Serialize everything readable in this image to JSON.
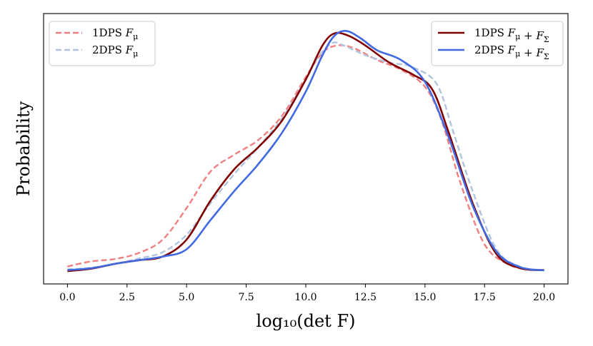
{
  "chart_data": {
    "type": "line",
    "title": "",
    "xlabel": "log₁₀(det F)",
    "ylabel": "Probability",
    "xlim": [
      -1.0,
      21.0
    ],
    "ylim": [
      0.0,
      1.0
    ],
    "x_ticks": [
      0.0,
      2.5,
      5.0,
      7.5,
      10.0,
      12.5,
      15.0,
      17.5,
      20.0
    ],
    "x_tick_labels": [
      "0.0",
      "2.5",
      "5.0",
      "7.5",
      "10.0",
      "12.5",
      "15.0",
      "17.5",
      "20.0"
    ],
    "y_ticks_visible": false,
    "grid": false,
    "legends": [
      {
        "placement": "top-left",
        "entries": [
          "1DPS F_μ",
          "2DPS F_μ"
        ]
      },
      {
        "placement": "top-right",
        "entries": [
          "1DPS F_μ + F_Σ",
          "2DPS F_μ + F_Σ"
        ]
      }
    ],
    "series": [
      {
        "name": "1DPS F_μ",
        "legend_label": "1DPS",
        "legend_math": "F_μ",
        "color": "#f08080",
        "style": "dashed",
        "legend_group": "left",
        "x": [
          0.0,
          1.0,
          2.0,
          3.0,
          4.0,
          5.0,
          6.0,
          7.0,
          8.0,
          9.0,
          10.0,
          10.7,
          11.3,
          12.0,
          13.0,
          14.0,
          15.0,
          15.7,
          16.5,
          17.5,
          18.5,
          19.3,
          20.0
        ],
        "y": [
          0.019,
          0.04,
          0.05,
          0.075,
          0.13,
          0.26,
          0.41,
          0.48,
          0.54,
          0.64,
          0.8,
          0.9,
          0.93,
          0.92,
          0.87,
          0.83,
          0.76,
          0.62,
          0.36,
          0.11,
          0.028,
          0.007,
          0.004
        ]
      },
      {
        "name": "2DPS F_μ",
        "legend_label": "2DPS",
        "legend_math": "F_μ",
        "color": "#b0c4de",
        "style": "dashed",
        "legend_group": "left",
        "x": [
          0.0,
          1.0,
          2.0,
          3.0,
          4.0,
          5.0,
          6.0,
          7.0,
          8.0,
          9.0,
          10.0,
          10.5,
          11.1,
          11.6,
          12.5,
          13.5,
          14.5,
          15.5,
          16.2,
          17.0,
          18.0,
          19.0,
          20.0
        ],
        "y": [
          0.007,
          0.014,
          0.03,
          0.052,
          0.078,
          0.15,
          0.28,
          0.4,
          0.51,
          0.63,
          0.79,
          0.88,
          0.94,
          0.93,
          0.89,
          0.86,
          0.84,
          0.77,
          0.57,
          0.33,
          0.09,
          0.018,
          0.004
        ]
      },
      {
        "name": "1DPS F_μ + F_Σ",
        "legend_label": "1DPS",
        "legend_math": "F_μ + F_Σ",
        "color": "#800000",
        "style": "solid",
        "legend_group": "right",
        "x": [
          0.0,
          1.0,
          2.0,
          3.0,
          4.0,
          5.0,
          6.0,
          7.0,
          8.0,
          9.0,
          10.0,
          10.7,
          11.2,
          11.8,
          12.5,
          13.5,
          14.5,
          15.3,
          16.0,
          17.0,
          18.0,
          19.0,
          20.0
        ],
        "y": [
          0.0,
          0.01,
          0.03,
          0.045,
          0.06,
          0.13,
          0.29,
          0.42,
          0.51,
          0.62,
          0.79,
          0.93,
          0.98,
          0.97,
          0.93,
          0.86,
          0.81,
          0.75,
          0.57,
          0.28,
          0.07,
          0.012,
          0.004
        ]
      },
      {
        "name": "2DPS F_μ + F_Σ",
        "legend_label": "2DPS",
        "legend_math": "F_μ + F_Σ",
        "color": "#4169e1",
        "style": "solid",
        "legend_group": "right",
        "x": [
          0.0,
          1.0,
          2.0,
          3.0,
          4.0,
          5.0,
          6.0,
          7.0,
          8.0,
          9.0,
          10.0,
          10.7,
          11.2,
          11.7,
          12.3,
          13.0,
          14.0,
          15.0,
          16.0,
          17.0,
          18.0,
          19.0,
          20.0
        ],
        "y": [
          0.004,
          0.012,
          0.03,
          0.045,
          0.06,
          0.09,
          0.21,
          0.33,
          0.44,
          0.57,
          0.74,
          0.89,
          0.97,
          0.99,
          0.96,
          0.91,
          0.87,
          0.78,
          0.55,
          0.27,
          0.08,
          0.016,
          0.003
        ]
      }
    ]
  }
}
